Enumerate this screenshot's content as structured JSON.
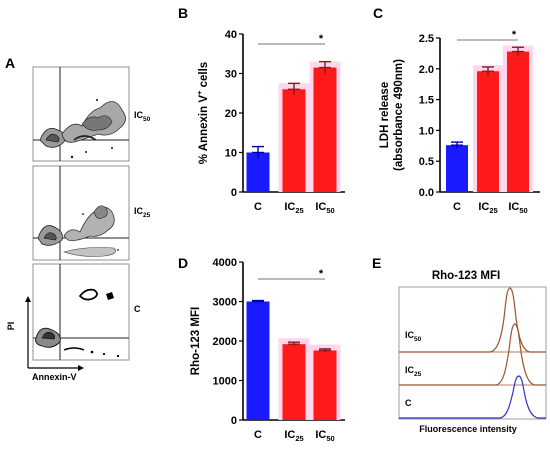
{
  "panels": {
    "A": {
      "letter": "A",
      "y_axis_label": "PI",
      "x_axis_label": "Annexin-V",
      "plots": [
        {
          "label_main": "IC",
          "label_sub": "50"
        },
        {
          "label_main": "IC",
          "label_sub": "25"
        },
        {
          "label_main": "C",
          "label_sub": ""
        }
      ]
    },
    "E": {
      "letter": "E",
      "title": "Rho-123 MFI",
      "x_axis_label": "Fluorescence intensity",
      "traces": [
        {
          "label_main": "IC",
          "label_sub": "50",
          "color": "#a0522d"
        },
        {
          "label_main": "IC",
          "label_sub": "25",
          "color": "#a0522d"
        },
        {
          "label_main": "C",
          "label_sub": "",
          "color": "#3333cc"
        }
      ]
    }
  },
  "chart_data": [
    {
      "panel": "B",
      "type": "bar",
      "categories": [
        {
          "main": "C",
          "sub": ""
        },
        {
          "main": "IC",
          "sub": "25"
        },
        {
          "main": "IC",
          "sub": "50"
        }
      ],
      "values": [
        10,
        26,
        31.5
      ],
      "errors": [
        1.5,
        1.5,
        1.5
      ],
      "colors": [
        "#1a1aff",
        "#ff1a1a",
        "#ff1a1a"
      ],
      "ylabel_main": "% Annexin V",
      "ylabel_sup": "+",
      "ylabel_tail": " cells",
      "ylim": [
        0,
        40
      ],
      "yticks": [
        0,
        10,
        20,
        30,
        40
      ],
      "significance": "*"
    },
    {
      "panel": "C",
      "type": "bar",
      "categories": [
        {
          "main": "C",
          "sub": ""
        },
        {
          "main": "IC",
          "sub": "25"
        },
        {
          "main": "IC",
          "sub": "50"
        }
      ],
      "values": [
        0.76,
        1.96,
        2.28
      ],
      "errors": [
        0.05,
        0.07,
        0.07
      ],
      "colors": [
        "#1a1aff",
        "#ff1a1a",
        "#ff1a1a"
      ],
      "ylabel_line1": "LDH release",
      "ylabel_line2": "(absorbance 490nm)",
      "ylim": [
        0,
        2.5
      ],
      "yticks": [
        "0.0",
        "0.5",
        "1.0",
        "1.5",
        "2.0",
        "2.5"
      ],
      "significance": "*"
    },
    {
      "panel": "D",
      "type": "bar",
      "categories": [
        {
          "main": "C",
          "sub": ""
        },
        {
          "main": "IC",
          "sub": "25"
        },
        {
          "main": "IC",
          "sub": "50"
        }
      ],
      "values": [
        3000,
        1920,
        1760
      ],
      "errors": [
        25,
        50,
        40
      ],
      "colors": [
        "#1a1aff",
        "#ff1a1a",
        "#ff1a1a"
      ],
      "ylabel": "Rho-123 MFI",
      "ylim": [
        0,
        4000
      ],
      "yticks": [
        0,
        1000,
        2000,
        3000,
        4000
      ],
      "significance": "*"
    }
  ]
}
